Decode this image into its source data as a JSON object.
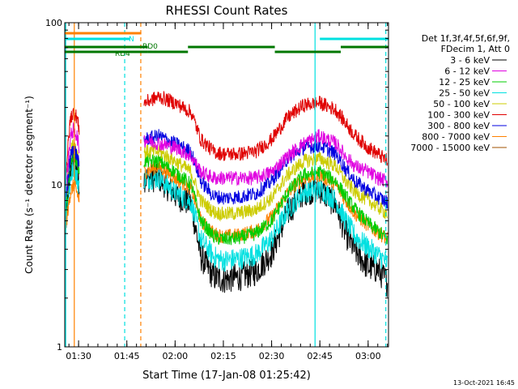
{
  "chart_data": {
    "type": "line",
    "title": "RHESSI Count Rates",
    "xlabel": "Start Time (17-Jan-08 01:25:42)",
    "ylabel": "Count Rate (s⁻¹ detector segment⁻¹)",
    "y_scale": "log",
    "ylim": [
      1,
      100
    ],
    "xlim": [
      "01:25:42",
      "03:06:20"
    ],
    "x_ticks": [
      "01:30",
      "01:45",
      "02:00",
      "02:15",
      "02:30",
      "02:45",
      "03:00"
    ],
    "y_ticks": [
      "1",
      "10",
      "100"
    ],
    "data_gap": [
      "01:30:10",
      "01:50:20"
    ],
    "legend_header": [
      "Det 1f,3f,4f,5f,6f,9f,",
      "FDecim 1, Att 0"
    ],
    "series": [
      {
        "name": "3 - 6 keV",
        "color": "#000000",
        "x": [
          "01:25:42",
          "01:27:30",
          "01:28:30",
          "01:29:30",
          "01:30:10",
          "01:50:20",
          "01:55:00",
          "02:00:00",
          "02:05:00",
          "02:08:00",
          "02:12:00",
          "02:15:00",
          "02:20:00",
          "02:25:00",
          "02:30:00",
          "02:35:00",
          "02:40:00",
          "02:45:00",
          "02:50:00",
          "02:53:00",
          "02:56:00",
          "03:00:00",
          "03:03:00",
          "03:06:00"
        ],
        "values": [
          5,
          12,
          14,
          12,
          10,
          11,
          11,
          8.7,
          7.6,
          3.6,
          2.7,
          2.6,
          2.7,
          2.9,
          3.8,
          6.7,
          9.1,
          9.4,
          7.5,
          5.0,
          3.9,
          3.1,
          3.0,
          2.5
        ]
      },
      {
        "name": "6 - 12 keV",
        "color": "#e000e0",
        "x": [
          "01:25:42",
          "01:27:30",
          "01:28:30",
          "01:29:30",
          "01:30:10",
          "01:50:20",
          "01:55:00",
          "02:00:00",
          "02:05:00",
          "02:08:00",
          "02:12:00",
          "02:15:00",
          "02:20:00",
          "02:25:00",
          "02:30:00",
          "02:35:00",
          "02:40:00",
          "02:45:00",
          "02:50:00",
          "02:53:00",
          "02:56:00",
          "03:00:00",
          "03:03:00",
          "03:06:00"
        ],
        "values": [
          8,
          20,
          22,
          20,
          17,
          19,
          18,
          17,
          15,
          12,
          11,
          11,
          11,
          11,
          12,
          15,
          18,
          20,
          18,
          15,
          13,
          12,
          11,
          10.5
        ]
      },
      {
        "name": "12 - 25 keV",
        "color": "#00cc00",
        "x": [
          "01:25:42",
          "01:27:30",
          "01:28:30",
          "01:29:30",
          "01:30:10",
          "01:50:20",
          "01:55:00",
          "02:00:00",
          "02:05:00",
          "02:08:00",
          "02:12:00",
          "02:15:00",
          "02:20:00",
          "02:25:00",
          "02:30:00",
          "02:35:00",
          "02:40:00",
          "02:45:00",
          "02:50:00",
          "02:53:00",
          "02:56:00",
          "03:00:00",
          "03:03:00",
          "03:06:00"
        ],
        "values": [
          6,
          14,
          16,
          14,
          12,
          14,
          14,
          12,
          10,
          6.0,
          4.8,
          4.6,
          4.7,
          5.0,
          6.0,
          9,
          11.5,
          12,
          10.5,
          8.5,
          7,
          5.8,
          5.2,
          4.6
        ]
      },
      {
        "name": "25 - 50 keV",
        "color": "#00e0e0",
        "x": [
          "01:25:42",
          "01:27:30",
          "01:28:30",
          "01:29:30",
          "01:30:10",
          "01:50:20",
          "01:55:00",
          "02:00:00",
          "02:05:00",
          "02:08:00",
          "02:12:00",
          "02:15:00",
          "02:20:00",
          "02:25:00",
          "02:30:00",
          "02:35:00",
          "02:40:00",
          "02:45:00",
          "02:50:00",
          "02:53:00",
          "02:56:00",
          "03:00:00",
          "03:03:00",
          "03:06:00"
        ],
        "values": [
          5,
          11,
          13,
          11,
          9.5,
          11,
          11,
          9,
          7.8,
          4.6,
          3.6,
          3.4,
          3.5,
          3.7,
          4.6,
          7,
          9,
          9.5,
          8,
          6.0,
          4.8,
          4.1,
          3.7,
          3.3
        ]
      },
      {
        "name": "50 - 100 keV",
        "color": "#cccc00",
        "x": [
          "01:25:42",
          "01:27:30",
          "01:28:30",
          "01:29:30",
          "01:30:10",
          "01:50:20",
          "01:55:00",
          "02:00:00",
          "02:05:00",
          "02:08:00",
          "02:12:00",
          "02:15:00",
          "02:20:00",
          "02:25:00",
          "02:30:00",
          "02:35:00",
          "02:40:00",
          "02:45:00",
          "02:50:00",
          "02:53:00",
          "02:56:00",
          "03:00:00",
          "03:03:00",
          "03:06:00"
        ],
        "values": [
          7,
          16,
          18,
          16,
          14,
          16,
          16,
          14,
          12,
          8,
          6.8,
          6.6,
          6.7,
          7.0,
          8.3,
          11.5,
          14,
          14.5,
          13,
          10.5,
          9,
          8,
          7.3,
          6.6
        ]
      },
      {
        "name": "100 - 300 keV",
        "color": "#e00000",
        "x": [
          "01:25:42",
          "01:27:30",
          "01:28:30",
          "01:29:30",
          "01:30:10",
          "01:50:20",
          "01:55:00",
          "02:00:00",
          "02:05:00",
          "02:08:00",
          "02:12:00",
          "02:15:00",
          "02:20:00",
          "02:25:00",
          "02:30:00",
          "02:35:00",
          "02:40:00",
          "02:45:00",
          "02:50:00",
          "02:53:00",
          "02:56:00",
          "03:00:00",
          "03:03:00",
          "03:06:00"
        ],
        "values": [
          10,
          26,
          28,
          26,
          22,
          32,
          35,
          32,
          28,
          19,
          16,
          15.5,
          15.5,
          16,
          19,
          26,
          31,
          32,
          29,
          24,
          20,
          17,
          15.5,
          14
        ]
      },
      {
        "name": "300 - 800 keV",
        "color": "#0000e0",
        "x": [
          "01:25:42",
          "01:27:30",
          "01:28:30",
          "01:29:30",
          "01:30:10",
          "01:50:20",
          "01:55:00",
          "02:00:00",
          "02:05:00",
          "02:08:00",
          "02:12:00",
          "02:15:00",
          "02:20:00",
          "02:25:00",
          "02:30:00",
          "02:35:00",
          "02:40:00",
          "02:45:00",
          "02:50:00",
          "02:53:00",
          "02:56:00",
          "03:00:00",
          "03:03:00",
          "03:06:00"
        ],
        "values": [
          7,
          15,
          17,
          15,
          13,
          19,
          20,
          18,
          16,
          10.5,
          8.5,
          8.3,
          8.4,
          8.8,
          10.5,
          14.5,
          17,
          17.5,
          15.5,
          12.5,
          10.5,
          9.2,
          8.4,
          7.8
        ]
      },
      {
        "name": "800 - 7000 keV",
        "color": "#ff8000",
        "x": [
          "01:25:42",
          "01:27:30",
          "01:28:30",
          "01:29:30",
          "01:30:10",
          "01:50:20",
          "01:55:00",
          "02:00:00",
          "02:05:00",
          "02:08:00",
          "02:12:00",
          "02:15:00",
          "02:20:00",
          "02:25:00",
          "02:30:00",
          "02:35:00",
          "02:40:00",
          "02:45:00",
          "02:50:00",
          "02:53:00",
          "02:56:00",
          "03:00:00",
          "03:03:00",
          "03:06:00"
        ],
        "values": [
          5,
          9,
          10,
          9,
          8,
          12,
          13,
          11,
          9.5,
          6,
          5,
          4.8,
          4.9,
          5.2,
          6.3,
          9,
          11,
          11.5,
          10,
          8,
          6.6,
          5.6,
          5.1,
          4.6
        ]
      },
      {
        "name": "7000 - 15000 keV",
        "color": "#a05000",
        "x": [],
        "values": []
      }
    ],
    "attenuator_flags": [
      {
        "label": "",
        "color": "#ff8000",
        "spans": [
          [
            "01:25:42",
            "01:49:30"
          ]
        ]
      },
      {
        "label": "N",
        "color": "#00e0e0",
        "spans": [
          [
            "01:25:42",
            "01:46:00"
          ],
          [
            "02:45:00",
            "03:06:20"
          ]
        ]
      },
      {
        "label": "RD0",
        "color": "#007700",
        "spans": [
          [
            "01:25:42",
            "01:51:30"
          ],
          [
            "02:04:00",
            "02:31:00"
          ],
          [
            "02:51:30",
            "03:06:20"
          ]
        ]
      },
      {
        "label": "RD4",
        "color": "#007700",
        "spans": [
          [
            "01:25:42",
            "01:51:30"
          ],
          [
            "01:51:30",
            "02:04:00"
          ],
          [
            "02:31:00",
            "02:51:30"
          ]
        ]
      }
    ],
    "vertical_markers": [
      {
        "time": "01:26:00",
        "color": "#00e0e0",
        "dashed": false
      },
      {
        "time": "01:28:40",
        "color": "#ff8000",
        "dashed": false
      },
      {
        "time": "01:44:20",
        "color": "#00e0e0",
        "dashed": true
      },
      {
        "time": "01:49:20",
        "color": "#ff8000",
        "dashed": true
      },
      {
        "time": "02:43:30",
        "color": "#00e0e0",
        "dashed": false
      },
      {
        "time": "03:05:30",
        "color": "#00e0e0",
        "dashed": true
      }
    ]
  },
  "footer": {
    "timestamp": "13-Oct-2021 16:45"
  }
}
